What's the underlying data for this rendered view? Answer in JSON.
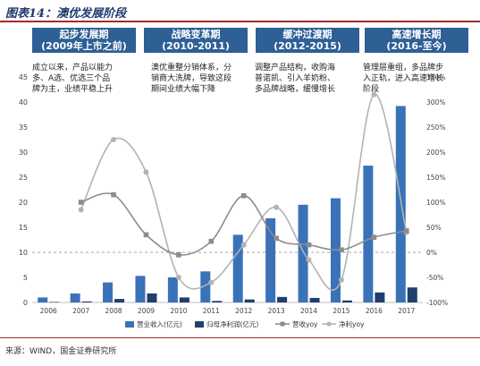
{
  "title": "图表14：澳优发展阶段",
  "source": "来源：WIND，国金证券研究所",
  "phases": [
    {
      "title": "起步发展期",
      "period": "(2009年上市之前)",
      "desc": [
        "成立以来，产品以能力",
        "多、A选、优选三个品",
        "牌为主，业绩平稳上升"
      ]
    },
    {
      "title": "战略变革期",
      "period": "(2010-2011)",
      "desc": [
        "澳优重整分销体系，分",
        "销商大洗牌，导致这段",
        "期间业绩大幅下降"
      ]
    },
    {
      "title": "缓冲过渡期",
      "period": "(2012-2015)",
      "desc": [
        "调整产品结构，收购海",
        "普诺凯、引入羊奶粉、",
        "多品牌战略，缓慢增长"
      ]
    },
    {
      "title": "高速增长期",
      "period": "(2016-至今)",
      "desc": [
        "管理层重组，多品牌步",
        "入正轨，进入高速增长",
        "阶段"
      ]
    }
  ],
  "colors": {
    "revenue": "#3a72b8",
    "profit": "#1f3f6e",
    "revenue_yoy": "#8c8c8c",
    "profit_yoy": "#b3b3b3",
    "phase_bg": "#2e5f95",
    "accent": "#a52a2a"
  },
  "chart_data": {
    "type": "bar",
    "categories": [
      "2006",
      "2007",
      "2008",
      "2009",
      "2010",
      "2011",
      "2012",
      "2013",
      "2014",
      "2015",
      "2016",
      "2017"
    ],
    "series": [
      {
        "name": "营业收入(亿元)",
        "axis": "left",
        "kind": "bar",
        "values": [
          1.0,
          1.8,
          4.0,
          5.3,
          5.0,
          6.2,
          13.5,
          16.8,
          19.5,
          20.8,
          27.3,
          39.2
        ]
      },
      {
        "name": "归母净利润(亿元)",
        "axis": "left",
        "kind": "bar",
        "values": [
          0.1,
          0.2,
          0.7,
          1.8,
          1.0,
          0.3,
          0.6,
          1.1,
          0.9,
          0.4,
          2.0,
          3.0
        ]
      },
      {
        "name": "营收yoy",
        "axis": "right",
        "kind": "line",
        "values": [
          null,
          100,
          115,
          35,
          -5,
          22,
          113,
          28,
          15,
          5,
          30,
          43
        ]
      },
      {
        "name": "净利yoy",
        "axis": "right",
        "kind": "line",
        "values": [
          null,
          85,
          225,
          160,
          -50,
          -60,
          15,
          90,
          -15,
          -55,
          315,
          40
        ]
      }
    ],
    "ylim": [
      0,
      45
    ],
    "yticks": [
      0,
      5,
      10,
      15,
      20,
      25,
      30,
      35,
      40,
      45
    ],
    "y2lim": [
      -100,
      350
    ],
    "y2ticks": [
      -100,
      -50,
      0,
      50,
      100,
      150,
      200,
      250,
      300,
      350
    ],
    "y2ticklabels": [
      "-100%",
      "-50%",
      "0%",
      "50%",
      "100%",
      "150%",
      "200%",
      "250%",
      "300%",
      "350%"
    ],
    "reference_line": 10,
    "legend": [
      "营业收入(亿元)",
      "归母净利润(亿元)",
      "营收yoy",
      "净利yoy"
    ],
    "legend_position": "bottom"
  }
}
